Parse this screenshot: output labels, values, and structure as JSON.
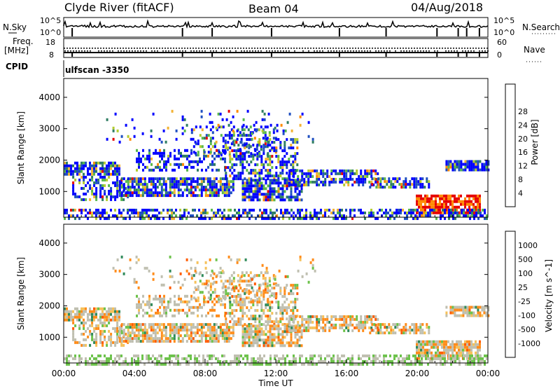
{
  "header": {
    "station": "Clyde River (fitACF)",
    "beam": "Beam 04",
    "date": "04/Aug/2018"
  },
  "strips": {
    "nsky_label": "N.Sky",
    "nsearch_label": "N.Search",
    "freq_label_1": "Freq.",
    "freq_label_2": "[MHz]",
    "nave_label": "Nave",
    "cpid_label": "CPID",
    "nsky_ticks": [
      "10^5",
      "10^0"
    ],
    "nsearch_ticks": [
      "10^5",
      "10^0"
    ],
    "freq_ticks": [
      "18",
      "8"
    ],
    "nave_ticks": [
      "60",
      "0"
    ],
    "cpid_value": "ulfscan -3350"
  },
  "chart_data": [
    {
      "type": "heatmap",
      "name": "power",
      "ylabel": "Slant Range [km]",
      "ylim": [
        180,
        4600
      ],
      "yticks": [
        "1000",
        "2000",
        "3000",
        "4000"
      ],
      "xticks": [
        "00:00",
        "04:00",
        "08:00",
        "12:00",
        "16:00",
        "20:00",
        "00:00"
      ],
      "colorbar_label": "Power [dB]",
      "colorbar_ticks": [
        "4",
        "8",
        "12",
        "16",
        "20",
        "24",
        "28"
      ],
      "colors": [
        "#0000ff",
        "#1f4fc0",
        "#2e7d62",
        "#58b84a",
        "#b3cc2e",
        "#f2b233",
        "#ff8a00",
        "#ff4d00",
        "#e60000"
      ]
    },
    {
      "type": "heatmap",
      "name": "velocity",
      "xlabel": "Time UT",
      "ylabel": "Slant Range [km]",
      "ylim": [
        180,
        4600
      ],
      "yticks": [
        "1000",
        "2000",
        "3000",
        "4000"
      ],
      "xticks": [
        "00:00",
        "04:00",
        "08:00",
        "12:00",
        "16:00",
        "20:00",
        "00:00"
      ],
      "colorbar_label": "Velocity [m s^-1]",
      "colorbar_ticks": [
        "1000",
        "500",
        "100",
        "25",
        "-25",
        "-100",
        "-500",
        "-1000"
      ],
      "colors": [
        "#2035b0",
        "#2a6db0",
        "#2f8a5a",
        "#6cc24a",
        "#bfbfb0",
        "#f5c15a",
        "#ff8c1a",
        "#ff5a00",
        "#e60000"
      ]
    }
  ]
}
